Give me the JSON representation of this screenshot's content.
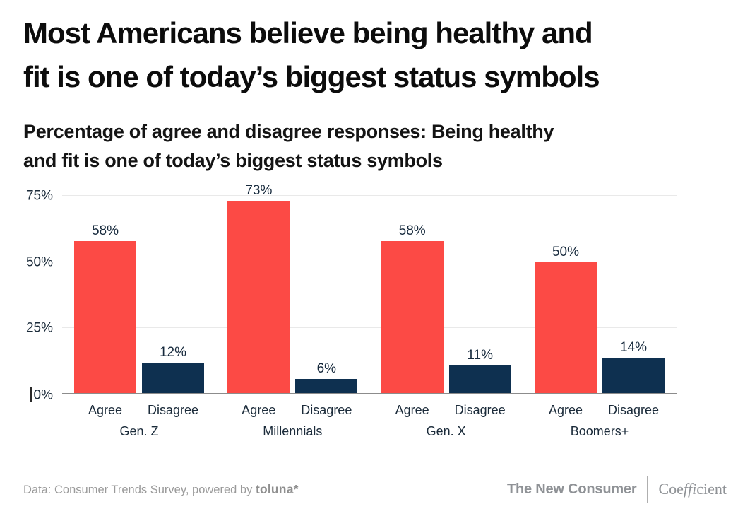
{
  "header": {
    "title_lines": [
      "Most Americans believe being healthy and",
      "fit is one of today’s biggest status symbols"
    ],
    "subtitle_lines": [
      "Percentage of agree and disagree responses: Being healthy",
      "and fit is one of today’s biggest status symbols"
    ]
  },
  "chart_data": {
    "type": "bar",
    "title": "Most Americans believe being healthy and fit is one of today’s biggest status symbols",
    "subtitle": "Percentage of agree and disagree responses: Being healthy and fit is one of today’s biggest status symbols",
    "categories": [
      "Gen. Z",
      "Millennials",
      "Gen. X",
      "Boomers+"
    ],
    "series": [
      {
        "name": "Agree",
        "color": "#FC4A45",
        "values": [
          58,
          73,
          58,
          50
        ],
        "labels": [
          "58%",
          "73%",
          "58%",
          "50%"
        ]
      },
      {
        "name": "Disagree",
        "color": "#0E3050",
        "values": [
          12,
          6,
          11,
          14
        ],
        "labels": [
          "12%",
          "6%",
          "11%",
          "14%"
        ]
      }
    ],
    "y_ticks": [
      {
        "value": 0,
        "label": "0%"
      },
      {
        "value": 25,
        "label": "25%"
      },
      {
        "value": 50,
        "label": "50%"
      },
      {
        "value": 75,
        "label": "75%"
      }
    ],
    "ylim": [
      0,
      78.6
    ],
    "grid": true,
    "legend_position": "none",
    "colors": {
      "gridline": "#E9E9E9",
      "baseline": "#8C8C8C",
      "tick_text": "#1B2B3A",
      "value_text": "#16293C"
    }
  },
  "footer": {
    "source_prefix": "Data: Consumer Trends Survey, powered by ",
    "source_brand": "toluna*",
    "publisher": "The New Consumer",
    "partner": {
      "pre": "Coe",
      "italic": "ffi",
      "post": "cient"
    }
  }
}
